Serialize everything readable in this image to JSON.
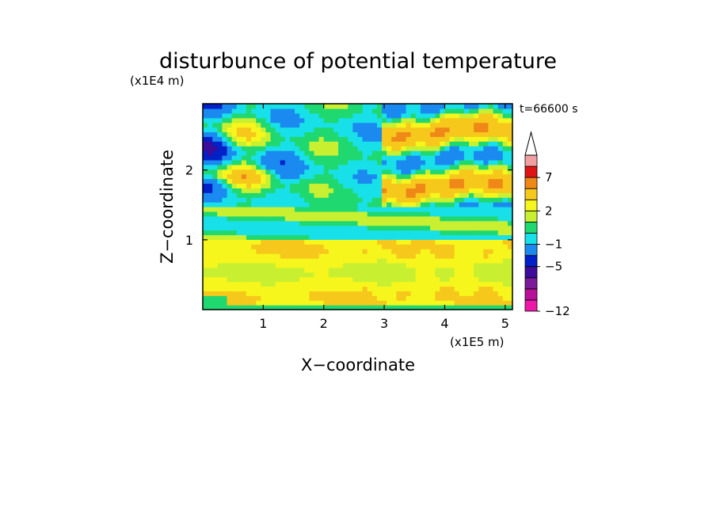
{
  "chart_data": {
    "type": "heatmap",
    "title": "disturbunce of potential temperature",
    "time_label": "t=66600 s",
    "xlabel": "X−coordinate",
    "ylabel": "Z−coordinate",
    "x_scale_label": "(x1E5 m)",
    "y_scale_label": "(x1E4 m)",
    "xlim": [
      0,
      5.12
    ],
    "ylim": [
      0,
      2.95
    ],
    "x_ticks": [
      {
        "value": 1,
        "label": "1"
      },
      {
        "value": 2,
        "label": "2"
      },
      {
        "value": 3,
        "label": "3"
      },
      {
        "value": 4,
        "label": "4"
      },
      {
        "value": 5,
        "label": "5"
      }
    ],
    "y_ticks": [
      {
        "value": 1,
        "label": "1"
      },
      {
        "value": 2,
        "label": "2"
      }
    ],
    "colorbar": {
      "levels": [
        -12,
        -10,
        -8,
        -6,
        -5,
        -3,
        -1,
        0,
        1,
        2,
        3,
        5,
        7,
        9,
        11
      ],
      "colors": [
        "#ee18a8",
        "#b8109a",
        "#7c1a9c",
        "#3c0c9a",
        "#0020c8",
        "#1a8af0",
        "#18e0e8",
        "#20d870",
        "#c8f030",
        "#f6f61c",
        "#f6c81c",
        "#f08818",
        "#e01414",
        "#f0a0a0"
      ],
      "extend_top": true,
      "tick_labels": [
        {
          "value": -12,
          "label": "−12"
        },
        {
          "value": -5,
          "label": "−5"
        },
        {
          "value": -1,
          "label": "−1"
        },
        {
          "value": 2,
          "label": "2"
        },
        {
          "value": 7,
          "label": "7"
        }
      ]
    },
    "field_summary": [
      {
        "region": "z 0.0–1.0, x 0–5.1",
        "range": [
          1,
          4
        ]
      },
      {
        "region": "z 1.0–1.5, x 0–5.1",
        "range": [
          -1,
          1
        ]
      },
      {
        "region": "z 1.5–2.95, x 0–3",
        "range": [
          -6,
          7
        ]
      },
      {
        "region": "z 1.5–2.95, x 3–5.1",
        "range": [
          -3,
          5
        ]
      }
    ]
  }
}
